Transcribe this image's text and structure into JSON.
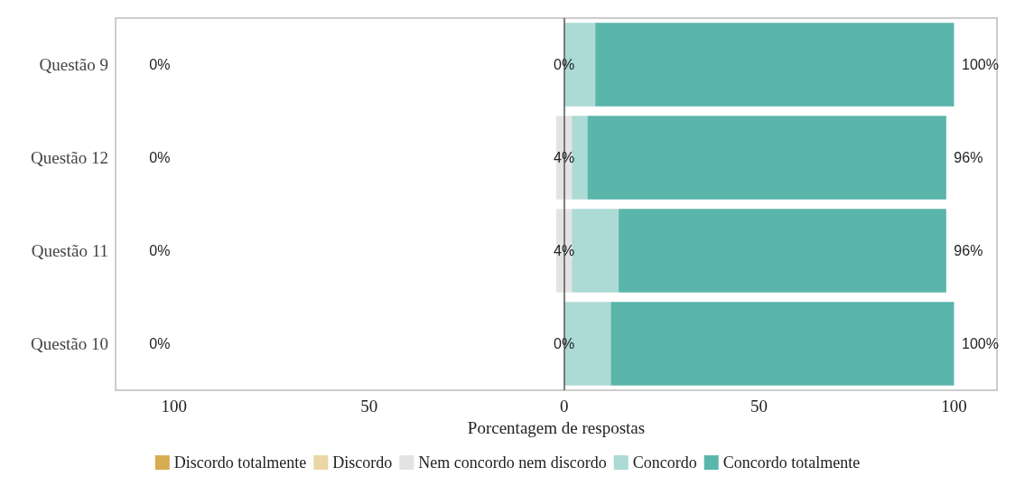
{
  "chart_data": {
    "type": "bar",
    "orientation": "horizontal",
    "xlabel": "Porcentagem de respostas",
    "categories": [
      "Questão 9",
      "Questão 12",
      "Questão 11",
      "Questão 10"
    ],
    "series": [
      {
        "name": "Discordo totalmente",
        "color": "#d8ac52",
        "values": [
          0,
          0,
          0,
          0
        ]
      },
      {
        "name": "Discordo",
        "color": "#ebd6a7",
        "values": [
          0,
          0,
          0,
          0
        ]
      },
      {
        "name": "Nem concordo nem discordo",
        "color": "#e3e3e3",
        "base": [
          null,
          -2,
          -2,
          null
        ],
        "values": [
          0,
          4,
          4,
          0
        ]
      },
      {
        "name": "Concordo",
        "color": "#acdad5",
        "base": [
          0,
          2,
          2,
          0
        ],
        "values": [
          8,
          4,
          12,
          12
        ]
      },
      {
        "name": "Concordo totalmente",
        "color": "#5ab5ab",
        "base": [
          8,
          6,
          14,
          12
        ],
        "values": [
          92,
          92,
          84,
          88
        ]
      }
    ],
    "xlim": [
      -115,
      111
    ],
    "xticks": [
      {
        "value": -100,
        "label": "100"
      },
      {
        "value": -50,
        "label": "50"
      },
      0,
      50,
      100
    ],
    "ref_lines": [
      {
        "axis": "x",
        "value": 0,
        "color": "#555555"
      }
    ],
    "annotations": [
      "0%",
      "0%",
      "0%",
      "0%",
      {
        "text": "0%",
        "x": 0,
        "y": "Questão 9"
      },
      {
        "text": "4%",
        "x": 0,
        "y": "Questão 12"
      },
      {
        "text": "4%",
        "x": 0,
        "y": "Questão 11"
      },
      {
        "text": "0%",
        "x": 0,
        "y": "Questão 10"
      },
      {
        "text": "100%",
        "x": 100,
        "y": "Questão 9"
      },
      {
        "text": "96%",
        "x": 98,
        "y": "Questão 12"
      },
      {
        "text": "96%",
        "x": 98,
        "y": "Questão 11"
      },
      {
        "text": "100%",
        "x": 100,
        "y": "Questão 10"
      }
    ],
    "legend": "bottom"
  }
}
